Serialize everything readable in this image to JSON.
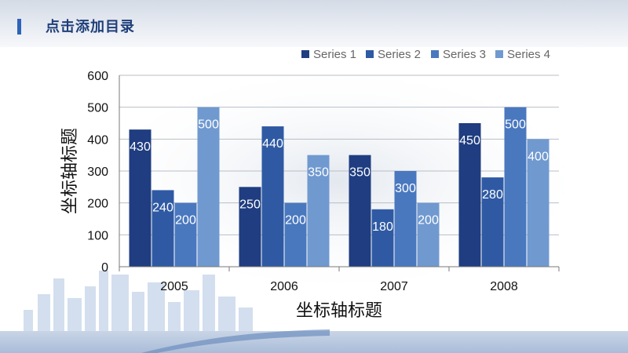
{
  "slide": {
    "title": "点击添加目录",
    "accent_color": "#2e63b8"
  },
  "chart_data": {
    "type": "bar",
    "categories": [
      "2005",
      "2006",
      "2007",
      "2008"
    ],
    "series": [
      {
        "name": "Series 1",
        "color": "#1f3d80",
        "values": [
          430,
          250,
          350,
          450
        ]
      },
      {
        "name": "Series 2",
        "color": "#2f5aa3",
        "values": [
          240,
          440,
          180,
          280
        ]
      },
      {
        "name": "Series 3",
        "color": "#4a78bf",
        "values": [
          200,
          200,
          300,
          500
        ]
      },
      {
        "name": "Series 4",
        "color": "#7099d0",
        "values": [
          500,
          350,
          200,
          400
        ]
      }
    ],
    "xlabel": "坐标轴标题",
    "ylabel": "坐标轴标题",
    "ylim": [
      0,
      600
    ],
    "yticks": [
      0,
      100,
      200,
      300,
      400,
      500,
      600
    ],
    "grid": true,
    "legend": "top-right",
    "data_labels": true
  }
}
